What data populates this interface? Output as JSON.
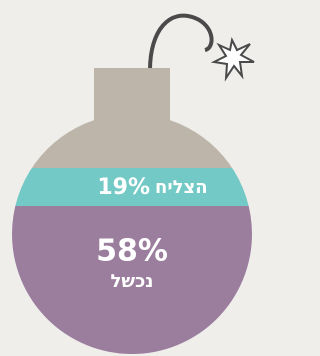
{
  "segments": [
    {
      "value_label": "19%",
      "label": "הצליח"
    },
    {
      "value_label": "58%",
      "label": "נכשל"
    }
  ]
}
